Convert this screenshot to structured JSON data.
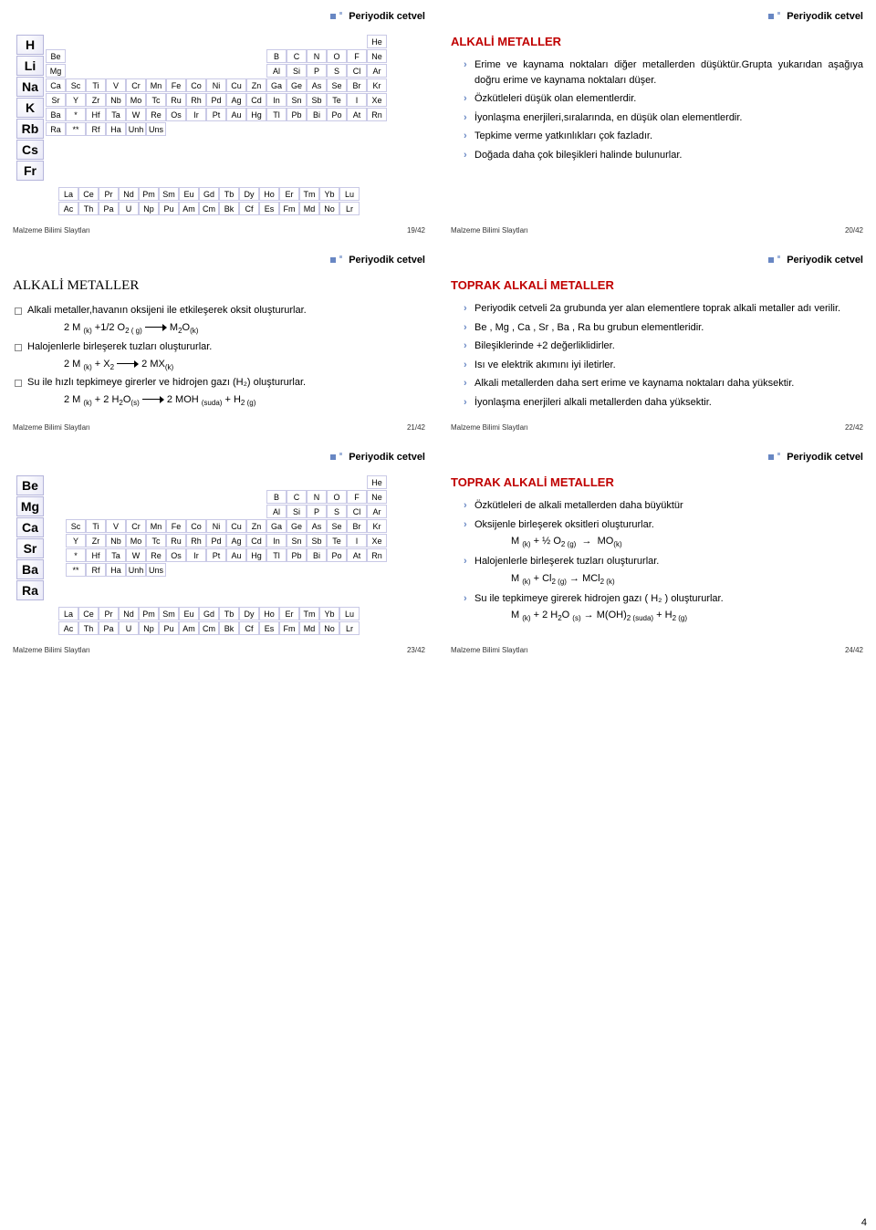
{
  "header_title": "Periyodik cetvel",
  "footer_label": "Malzeme Bilimi Slaytları",
  "page_number": "4",
  "colors": {
    "accent_red": "#c00000",
    "bullet_blue": "#6887c3",
    "cell_border": "#c9c9e6",
    "cell_fill_light": "#ffffff",
    "cell_fill_grad": "#e8e8f7",
    "text": "#000000",
    "footer_text": "#333333"
  },
  "fonts": {
    "body": "Arial",
    "heading_serif": "Times New Roman",
    "title_small_pt": 11,
    "heading_red_pt": 13,
    "heading_black_pt": 15,
    "body_pt": 11,
    "footer_pt": 8
  },
  "periodic": {
    "alkali_highlight": [
      "H",
      "Li",
      "Na",
      "K",
      "Rb",
      "Cs",
      "Fr"
    ],
    "alkaline_earth_highlight": [
      "Be",
      "Mg",
      "Ca",
      "Sr",
      "Ba",
      "Ra"
    ],
    "rows": [
      [
        "",
        "",
        "",
        "",
        "",
        "",
        "",
        "",
        "",
        "",
        "",
        "",
        "",
        "",
        "",
        "",
        "He"
      ],
      [
        "Be",
        "",
        "",
        "",
        "",
        "",
        "",
        "",
        "",
        "",
        "",
        "B",
        "C",
        "N",
        "O",
        "F",
        "Ne"
      ],
      [
        "Mg",
        "",
        "",
        "",
        "",
        "",
        "",
        "",
        "",
        "",
        "",
        "Al",
        "Si",
        "P",
        "S",
        "Cl",
        "Ar"
      ],
      [
        "Ca",
        "Sc",
        "Ti",
        "V",
        "Cr",
        "Mn",
        "Fe",
        "Co",
        "Ni",
        "Cu",
        "Zn",
        "Ga",
        "Ge",
        "As",
        "Se",
        "Br",
        "Kr"
      ],
      [
        "Sr",
        "Y",
        "Zr",
        "Nb",
        "Mo",
        "Tc",
        "Ru",
        "Rh",
        "Pd",
        "Ag",
        "Cd",
        "In",
        "Sn",
        "Sb",
        "Te",
        "I",
        "Xe"
      ],
      [
        "Ba",
        "*",
        "Hf",
        "Ta",
        "W",
        "Re",
        "Os",
        "Ir",
        "Pt",
        "Au",
        "Hg",
        "Tl",
        "Pb",
        "Bi",
        "Po",
        "At",
        "Rn"
      ],
      [
        "Ra",
        "**",
        "Rf",
        "Ha",
        "Unh",
        "Uns",
        "",
        "",
        "",
        "",
        "",
        "",
        "",
        "",
        "",
        "",
        ""
      ]
    ],
    "rows_noG2": [
      [
        "",
        "",
        "",
        "",
        "",
        "",
        "",
        "",
        "",
        "",
        "",
        "",
        "",
        "",
        "",
        "",
        "He"
      ],
      [
        "",
        "",
        "",
        "",
        "",
        "",
        "",
        "",
        "",
        "",
        "",
        "B",
        "C",
        "N",
        "O",
        "F",
        "Ne"
      ],
      [
        "",
        "",
        "",
        "",
        "",
        "",
        "",
        "",
        "",
        "",
        "",
        "Al",
        "Si",
        "P",
        "S",
        "Cl",
        "Ar"
      ],
      [
        "",
        "Sc",
        "Ti",
        "V",
        "Cr",
        "Mn",
        "Fe",
        "Co",
        "Ni",
        "Cu",
        "Zn",
        "Ga",
        "Ge",
        "As",
        "Se",
        "Br",
        "Kr"
      ],
      [
        "",
        "Y",
        "Zr",
        "Nb",
        "Mo",
        "Tc",
        "Ru",
        "Rh",
        "Pd",
        "Ag",
        "Cd",
        "In",
        "Sn",
        "Sb",
        "Te",
        "I",
        "Xe"
      ],
      [
        "",
        "*",
        "Hf",
        "Ta",
        "W",
        "Re",
        "Os",
        "Ir",
        "Pt",
        "Au",
        "Hg",
        "Tl",
        "Pb",
        "Bi",
        "Po",
        "At",
        "Rn"
      ],
      [
        "",
        "**",
        "Rf",
        "Ha",
        "Unh",
        "Uns",
        "",
        "",
        "",
        "",
        "",
        "",
        "",
        "",
        "",
        "",
        ""
      ]
    ],
    "lanth": [
      [
        "La",
        "Ce",
        "Pr",
        "Nd",
        "Pm",
        "Sm",
        "Eu",
        "Gd",
        "Tb",
        "Dy",
        "Ho",
        "Er",
        "Tm",
        "Yb",
        "Lu"
      ],
      [
        "Ac",
        "Th",
        "Pa",
        "U",
        "Np",
        "Pu",
        "Am",
        "Cm",
        "Bk",
        "Cf",
        "Es",
        "Fm",
        "Md",
        "No",
        "Lr"
      ]
    ]
  },
  "slides": {
    "s19": {
      "num": "19/42"
    },
    "s20": {
      "num": "20/42",
      "heading": "ALKALİ METALLER",
      "bullets": [
        "Erime ve kaynama noktaları diğer metallerden düşüktür.Grupta yukarıdan aşağıya doğru erime ve kaynama noktaları düşer.",
        "Özkütleleri düşük olan elementlerdir.",
        "İyonlaşma enerjileri,sıralarında, en düşük olan elementlerdir.",
        "Tepkime verme yatkınlıkları çok fazladır.",
        "Doğada daha çok bileşikleri halinde bulunurlar."
      ]
    },
    "s21": {
      "num": "21/42",
      "heading": "ALKALİ METALLER",
      "bullets": [
        "Alkali metaller,havanın oksijeni ile etkileşerek oksit oluştururlar.",
        "Halojenlerle birleşerek tuzları oluştururlar.",
        "Su ile hızlı tepkimeye girerler ve hidrojen gazı (H₂) oluştururlar."
      ],
      "eqns": [
        "2 M (k) +1/2 O₂ ( g) → M₂O (k)",
        "2 M (k) + X₂ → 2 MX (k)",
        "2 M (k) + 2 H₂O (s) → 2 MOH (suda) + H₂ (g)"
      ]
    },
    "s22": {
      "num": "22/42",
      "heading": "TOPRAK ALKALİ METALLER",
      "bullets": [
        "Periyodik cetveli 2a grubunda yer alan elementlere toprak alkali metaller adı verilir.",
        "Be , Mg , Ca , Sr , Ba , Ra  bu grubun elementleridir.",
        "Bileşiklerinde +2 değerliklidirler.",
        "Isı ve elektrik akımını iyi iletirler.",
        "Alkali metallerden daha sert erime ve kaynama noktaları daha yüksektir.",
        "İyonlaşma enerjileri alkali metallerden daha yüksektir."
      ]
    },
    "s23": {
      "num": "23/42"
    },
    "s24": {
      "num": "24/42",
      "heading": "TOPRAK ALKALİ METALLER",
      "bullets": [
        "Özkütleleri de alkali metallerden daha büyüktür",
        "Oksijenle birleşerek oksitleri oluştururlar.",
        "Halojenlerle birleşerek tuzları oluştururlar.",
        "Su ile tepkimeye girerek hidrojen gazı ( H₂ ) oluştururlar."
      ],
      "eqns": [
        "M (k) + ½ O₂ (g) → MO (k)",
        "M (k) + Cl₂ (g) → MCl₂ (k)",
        "M (k) + 2 H₂O (s) → M(OH)₂ (suda) + H₂ (g)"
      ]
    }
  }
}
